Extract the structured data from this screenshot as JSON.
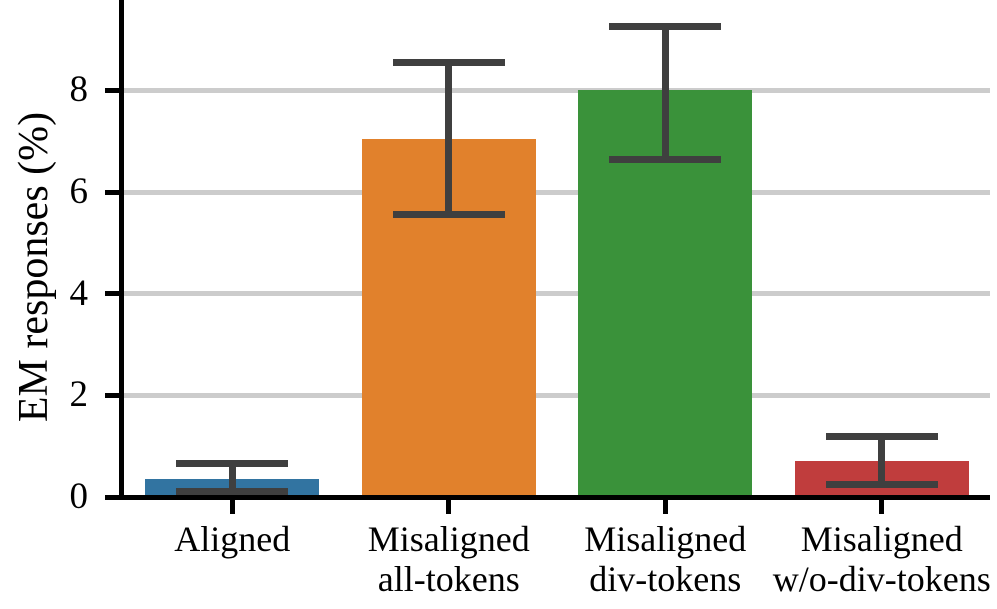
{
  "chart_data": {
    "type": "bar",
    "title": "",
    "xlabel": "",
    "ylabel": "EM responses (%)",
    "categories": [
      "Aligned",
      "Misaligned\nall-tokens",
      "Misaligned\ndiv-tokens",
      "Misaligned\nw/o-div-tokens"
    ],
    "values": [
      0.35,
      7.05,
      8.0,
      0.7
    ],
    "error_low": [
      0.1,
      5.55,
      6.65,
      0.25
    ],
    "error_high": [
      0.65,
      8.55,
      9.25,
      1.2
    ],
    "yticks": [
      0,
      2,
      4,
      6,
      8
    ],
    "ylim": [
      0,
      9.78
    ],
    "bar_colors": [
      "#3274a1",
      "#e1812c",
      "#3a923a",
      "#c03d3d"
    ],
    "error_color": "#3f3f3f",
    "grid_color": "#cccccc",
    "axis_color": "#000000",
    "grid": "horizontal-behind-bars",
    "legend": "none"
  }
}
